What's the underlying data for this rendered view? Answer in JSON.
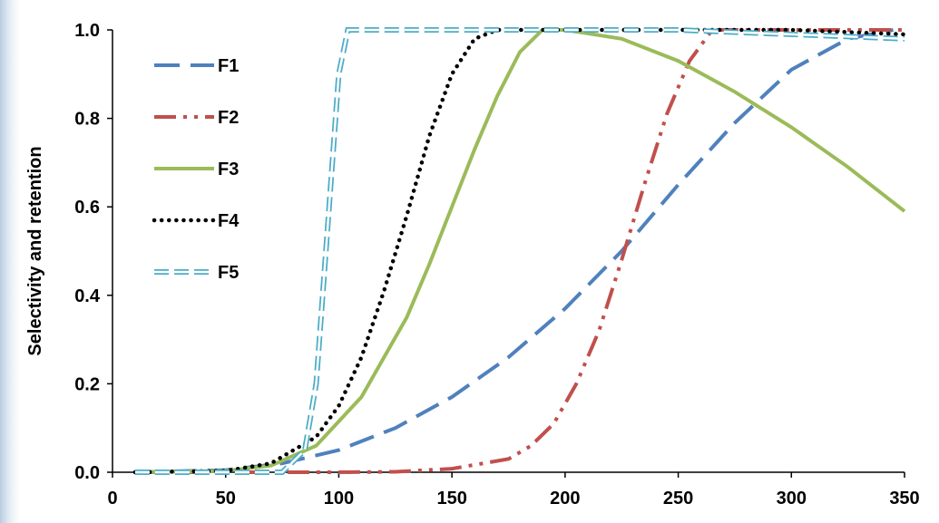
{
  "chart_data": {
    "type": "line",
    "title": "",
    "xlabel": "",
    "ylabel": "Selectivity and retention",
    "xlim": [
      0,
      350
    ],
    "ylim": [
      0,
      1.0
    ],
    "x_ticks": [
      "0",
      "50",
      "100",
      "150",
      "200",
      "250",
      "300",
      "350"
    ],
    "y_ticks": [
      "0.0",
      "0.2",
      "0.4",
      "0.6",
      "0.8",
      "1.0"
    ],
    "grid": false,
    "legend_position": "top-left",
    "series": [
      {
        "name": "F1",
        "color": "#4f81bd",
        "line_style": "long-dash",
        "x": [
          10,
          50,
          75,
          100,
          125,
          150,
          175,
          200,
          225,
          250,
          275,
          300,
          325,
          345
        ],
        "y": [
          0.0,
          0.005,
          0.02,
          0.05,
          0.1,
          0.17,
          0.26,
          0.37,
          0.5,
          0.65,
          0.79,
          0.91,
          0.98,
          1.0
        ]
      },
      {
        "name": "F2",
        "color": "#c0504d",
        "line_style": "dash-dot-dot",
        "x": [
          10,
          100,
          125,
          150,
          175,
          185,
          195,
          205,
          215,
          225,
          235,
          245,
          255,
          265,
          280,
          350
        ],
        "y": [
          0.0,
          0.0,
          0.001,
          0.008,
          0.03,
          0.06,
          0.11,
          0.2,
          0.32,
          0.48,
          0.65,
          0.81,
          0.93,
          1.0,
          1.0,
          1.0
        ]
      },
      {
        "name": "F3",
        "color": "#9bbb59",
        "line_style": "solid",
        "x": [
          10,
          50,
          70,
          90,
          110,
          130,
          140,
          150,
          160,
          170,
          180,
          190,
          200,
          225,
          250,
          275,
          300,
          325,
          350
        ],
        "y": [
          0.0,
          0.003,
          0.015,
          0.06,
          0.17,
          0.35,
          0.47,
          0.6,
          0.73,
          0.85,
          0.95,
          1.0,
          1.0,
          0.98,
          0.93,
          0.86,
          0.78,
          0.69,
          0.59
        ]
      },
      {
        "name": "F4",
        "color": "#000000",
        "line_style": "dotted",
        "x": [
          10,
          50,
          70,
          90,
          100,
          110,
          120,
          130,
          140,
          150,
          160,
          170,
          200,
          250,
          300,
          350
        ],
        "y": [
          0.0,
          0.003,
          0.02,
          0.08,
          0.15,
          0.26,
          0.41,
          0.58,
          0.76,
          0.9,
          0.98,
          1.0,
          1.0,
          1.0,
          1.0,
          0.99
        ]
      },
      {
        "name": "F5",
        "color": "#4bacc6",
        "line_style": "double-dashed",
        "x": [
          10,
          75,
          85,
          90,
          95,
          100,
          104,
          110,
          150,
          200,
          250,
          300,
          350
        ],
        "y": [
          0.0,
          0.0,
          0.05,
          0.2,
          0.55,
          0.9,
          1.0,
          1.0,
          1.0,
          1.0,
          1.0,
          0.99,
          0.98
        ]
      }
    ]
  }
}
